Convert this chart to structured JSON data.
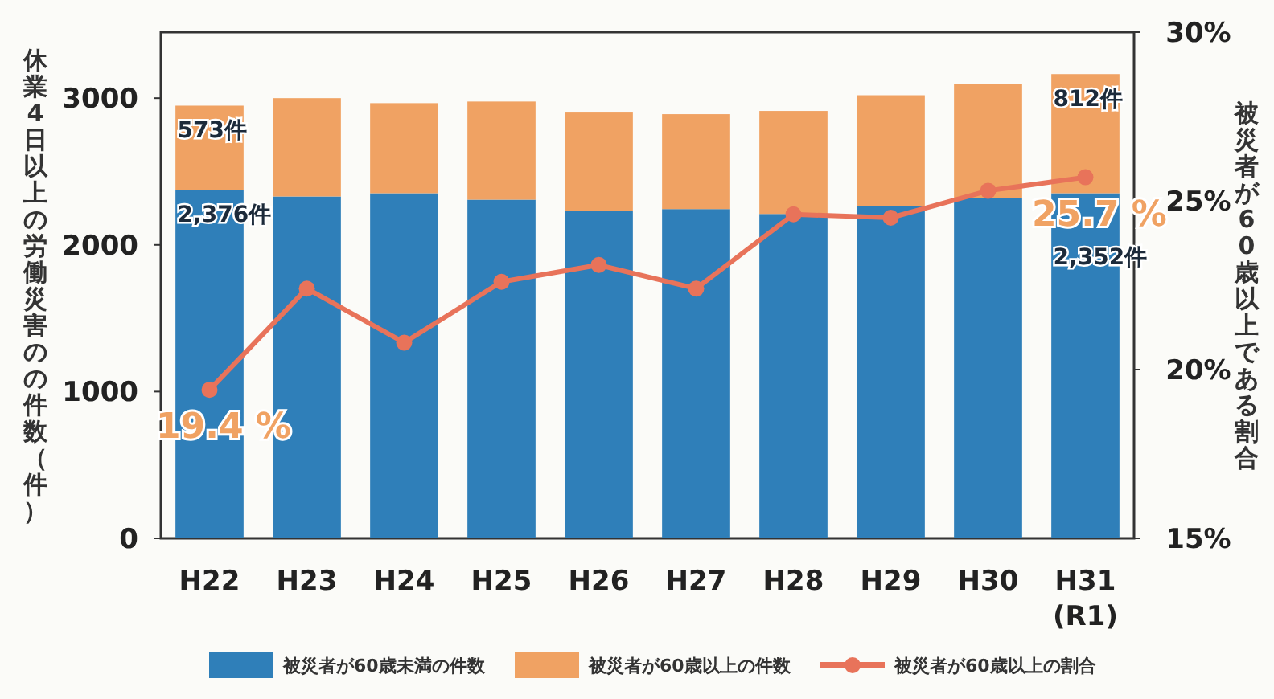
{
  "chart_data": {
    "type": "bar",
    "stacked": true,
    "categories": [
      "H22",
      "H23",
      "H24",
      "H25",
      "H26",
      "H27",
      "H28",
      "H29",
      "H30",
      "H31 (R1)"
    ],
    "series": [
      {
        "name": "被災者が60歳未満の件数",
        "color": "#2f7fb9",
        "values": [
          2376,
          2330,
          2352,
          2308,
          2233,
          2244,
          2211,
          2265,
          2319,
          2352
        ],
        "value_labels": [
          "2,376件",
          null,
          null,
          null,
          null,
          null,
          null,
          null,
          null,
          "2,352件"
        ]
      },
      {
        "name": "被災者が60歳以上の件数",
        "color": "#f0a263",
        "values": [
          573,
          670,
          614,
          669,
          669,
          647,
          702,
          755,
          777,
          812
        ],
        "value_labels": [
          "573件",
          null,
          null,
          null,
          null,
          null,
          null,
          null,
          null,
          "812件"
        ]
      },
      {
        "name": "被災者が60歳以上の割合",
        "type": "line",
        "axis": "y2",
        "color": "#e8735a",
        "values": [
          19.4,
          22.4,
          20.8,
          22.6,
          23.1,
          22.4,
          24.6,
          24.5,
          25.3,
          25.7
        ],
        "value_labels": [
          "19.4 %",
          null,
          null,
          null,
          null,
          null,
          null,
          null,
          null,
          "25.7 %"
        ]
      }
    ],
    "ylim": [
      0,
      3450
    ],
    "yticks": [
      0,
      1000,
      2000,
      3000
    ],
    "y2lim": [
      15,
      30
    ],
    "y2ticks": [
      {
        "value": 15,
        "label": "15%"
      },
      {
        "value": 20,
        "label": "20%"
      },
      {
        "value": 25,
        "label": "25%"
      },
      {
        "value": 30,
        "label": "30%"
      }
    ],
    "ylabel": "休業4日以上の労働災害のの件数（件）",
    "y2label": "被災者が60歳以上である割合",
    "marker": "circle",
    "legend": "bottom"
  }
}
